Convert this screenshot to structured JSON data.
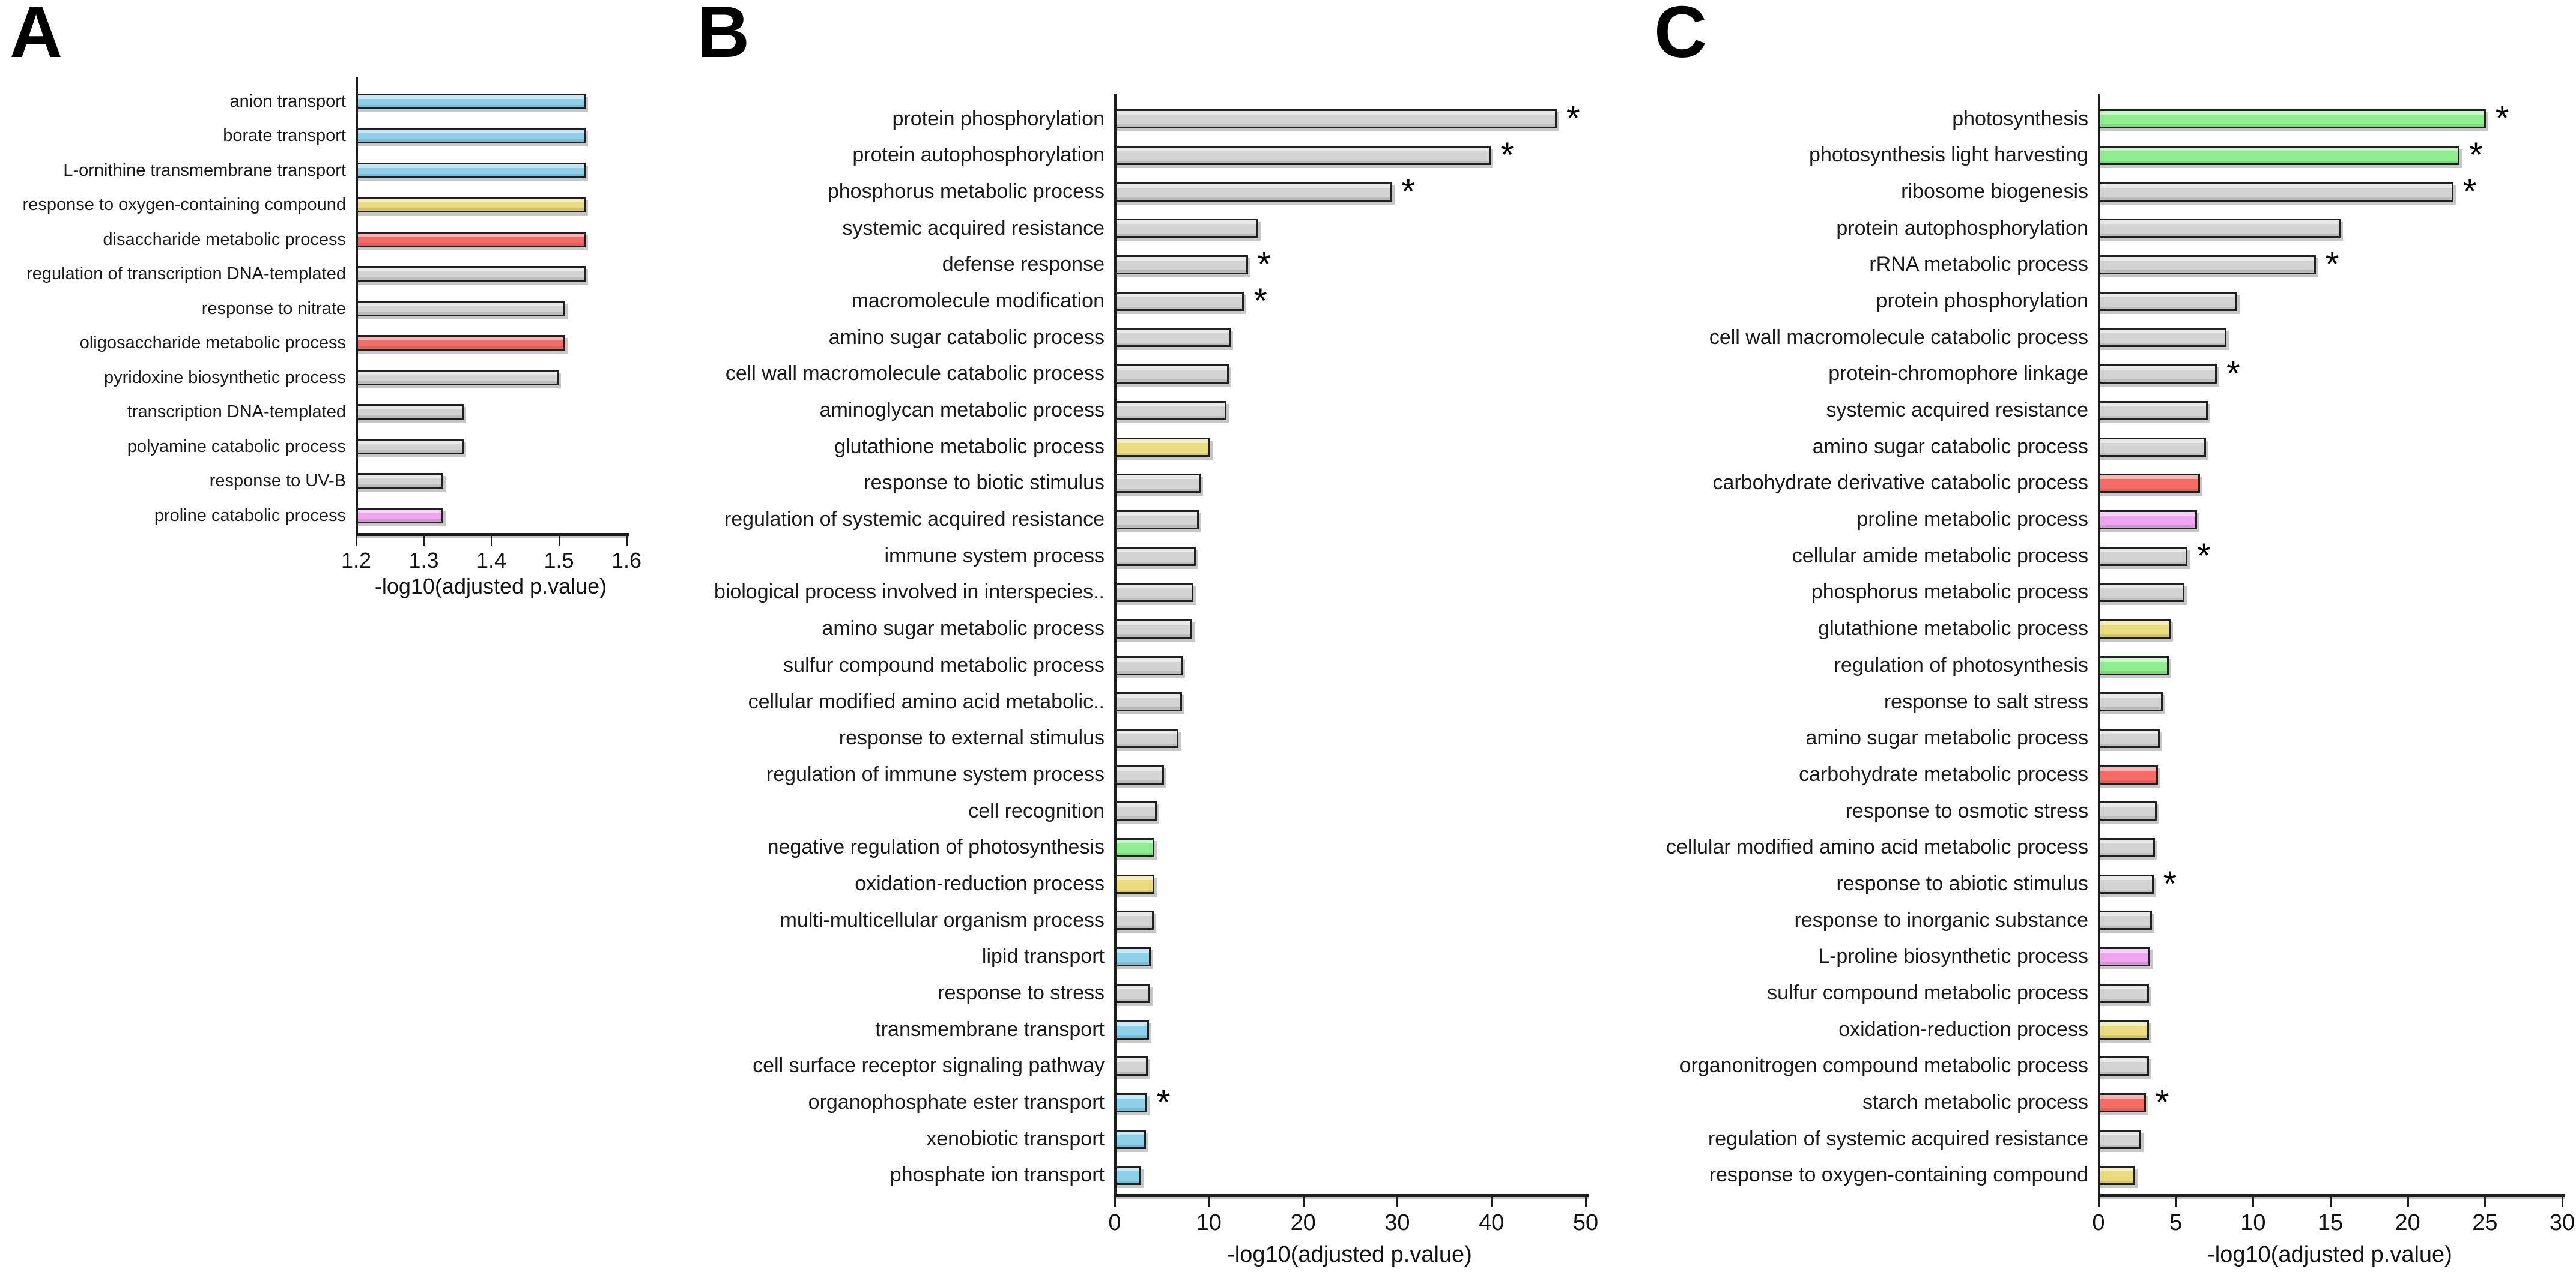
{
  "figure": {
    "background": "#ffffff",
    "star_symbol": "*",
    "description": "GO term enrichment horizontal bar charts, panels A, B, C"
  },
  "palette": {
    "gray": "#d3d3d3",
    "blue": "#8ed0ea",
    "yellow": "#eadc7e",
    "red": "#f56b66",
    "green": "#90ee90",
    "violet": "#efa4f0",
    "outline": "#202020",
    "axis": "#1c1c1c"
  },
  "chart_data": [
    {
      "panel_label": "A",
      "type": "bar",
      "orientation": "horizontal",
      "xlabel": "-log10(adjusted p.value)",
      "xlim": [
        1.2,
        1.6
      ],
      "xticks": [
        "1.2",
        "1.3",
        "1.4",
        "1.5",
        "1.6"
      ],
      "xtick_values": [
        1.2,
        1.3,
        1.4,
        1.5,
        1.6
      ],
      "grid": false,
      "bars": [
        {
          "label": "anion transport",
          "value": 1.54,
          "color": "blue",
          "star": false
        },
        {
          "label": "borate transport",
          "value": 1.54,
          "color": "blue",
          "star": false
        },
        {
          "label": "L-ornithine transmembrane transport",
          "value": 1.54,
          "color": "blue",
          "star": false
        },
        {
          "label": "response to oxygen-containing compound",
          "value": 1.54,
          "color": "yellow",
          "star": false
        },
        {
          "label": "disaccharide metabolic process",
          "value": 1.54,
          "color": "red",
          "star": false
        },
        {
          "label": "regulation of transcription DNA-templated",
          "value": 1.54,
          "color": "gray",
          "star": false
        },
        {
          "label": "response to nitrate",
          "value": 1.51,
          "color": "gray",
          "star": false
        },
        {
          "label": "oligosaccharide metabolic process",
          "value": 1.51,
          "color": "red",
          "star": false
        },
        {
          "label": "pyridoxine biosynthetic process",
          "value": 1.5,
          "color": "gray",
          "star": false
        },
        {
          "label": "transcription DNA-templated",
          "value": 1.36,
          "color": "gray",
          "star": false
        },
        {
          "label": "polyamine catabolic process",
          "value": 1.36,
          "color": "gray",
          "star": false
        },
        {
          "label": "response to UV-B",
          "value": 1.33,
          "color": "gray",
          "star": false
        },
        {
          "label": "proline catabolic process",
          "value": 1.33,
          "color": "violet",
          "star": false
        }
      ]
    },
    {
      "panel_label": "B",
      "type": "bar",
      "orientation": "horizontal",
      "xlabel": "-log10(adjusted p.value)",
      "xlim": [
        0,
        50
      ],
      "xticks": [
        "0",
        "10",
        "20",
        "30",
        "40",
        "50"
      ],
      "xtick_values": [
        0,
        10,
        20,
        30,
        40,
        50
      ],
      "grid": false,
      "bars": [
        {
          "label": "protein phosphorylation",
          "value": 47.0,
          "color": "gray",
          "star": true
        },
        {
          "label": "protein autophosphorylation",
          "value": 40.0,
          "color": "gray",
          "star": true
        },
        {
          "label": "phosphorus metabolic process",
          "value": 29.5,
          "color": "gray",
          "star": true
        },
        {
          "label": "systemic acquired resistance",
          "value": 15.3,
          "color": "gray",
          "star": false
        },
        {
          "label": "defense response",
          "value": 14.2,
          "color": "gray",
          "star": true
        },
        {
          "label": "macromolecule modification",
          "value": 13.8,
          "color": "gray",
          "star": true
        },
        {
          "label": "amino sugar catabolic process",
          "value": 12.4,
          "color": "gray",
          "star": false
        },
        {
          "label": "cell wall macromolecule catabolic process",
          "value": 12.2,
          "color": "gray",
          "star": false
        },
        {
          "label": "aminoglycan metabolic process",
          "value": 11.9,
          "color": "gray",
          "star": false
        },
        {
          "label": "glutathione metabolic process",
          "value": 10.2,
          "color": "yellow",
          "star": false
        },
        {
          "label": "response to biotic stimulus",
          "value": 9.2,
          "color": "gray",
          "star": false
        },
        {
          "label": "regulation of systemic acquired resistance",
          "value": 9.0,
          "color": "gray",
          "star": false
        },
        {
          "label": "immune system process",
          "value": 8.7,
          "color": "gray",
          "star": false
        },
        {
          "label": "biological process involved in interspecies..",
          "value": 8.4,
          "color": "gray",
          "star": false
        },
        {
          "label": "amino sugar metabolic process",
          "value": 8.3,
          "color": "gray",
          "star": false
        },
        {
          "label": "sulfur compound metabolic process",
          "value": 7.3,
          "color": "gray",
          "star": false
        },
        {
          "label": "cellular modified amino acid metabolic..",
          "value": 7.2,
          "color": "gray",
          "star": false
        },
        {
          "label": "response to external stimulus",
          "value": 6.8,
          "color": "gray",
          "star": false
        },
        {
          "label": "regulation of immune system process",
          "value": 5.3,
          "color": "gray",
          "star": false
        },
        {
          "label": "cell recognition",
          "value": 4.5,
          "color": "gray",
          "star": false
        },
        {
          "label": "negative regulation of photosynthesis",
          "value": 4.3,
          "color": "green",
          "star": false
        },
        {
          "label": "oxidation-reduction process",
          "value": 4.3,
          "color": "yellow",
          "star": false
        },
        {
          "label": "multi-multicellular organism process",
          "value": 4.2,
          "color": "gray",
          "star": false
        },
        {
          "label": "lipid transport",
          "value": 3.9,
          "color": "blue",
          "star": false
        },
        {
          "label": "response to stress",
          "value": 3.8,
          "color": "gray",
          "star": false
        },
        {
          "label": "transmembrane transport",
          "value": 3.7,
          "color": "blue",
          "star": false
        },
        {
          "label": "cell surface receptor signaling pathway",
          "value": 3.6,
          "color": "gray",
          "star": false
        },
        {
          "label": "organophosphate ester transport",
          "value": 3.5,
          "color": "blue",
          "star": true
        },
        {
          "label": "xenobiotic transport",
          "value": 3.4,
          "color": "blue",
          "star": false
        },
        {
          "label": "phosphate ion transport",
          "value": 2.9,
          "color": "blue",
          "star": false
        }
      ]
    },
    {
      "panel_label": "C",
      "type": "bar",
      "orientation": "horizontal",
      "xlabel": "-log10(adjusted p.value)",
      "xlim": [
        0,
        30
      ],
      "xticks": [
        "0",
        "5",
        "10",
        "15",
        "20",
        "25",
        "30"
      ],
      "xtick_values": [
        0,
        5,
        10,
        15,
        20,
        25,
        30
      ],
      "grid": false,
      "bars": [
        {
          "label": "photosynthesis",
          "value": 25.1,
          "color": "green",
          "star": true
        },
        {
          "label": "photosynthesis light harvesting",
          "value": 23.4,
          "color": "green",
          "star": true
        },
        {
          "label": "ribosome biogenesis",
          "value": 23.0,
          "color": "gray",
          "star": true
        },
        {
          "label": "protein autophosphorylation",
          "value": 15.7,
          "color": "gray",
          "star": false
        },
        {
          "label": "rRNA metabolic process",
          "value": 14.1,
          "color": "gray",
          "star": true
        },
        {
          "label": "protein phosphorylation",
          "value": 9.0,
          "color": "gray",
          "star": false
        },
        {
          "label": "cell wall macromolecule catabolic process",
          "value": 8.3,
          "color": "gray",
          "star": false
        },
        {
          "label": "protein-chromophore linkage",
          "value": 7.7,
          "color": "gray",
          "star": true
        },
        {
          "label": "systemic acquired resistance",
          "value": 7.1,
          "color": "gray",
          "star": false
        },
        {
          "label": "amino sugar catabolic process",
          "value": 7.0,
          "color": "gray",
          "star": false
        },
        {
          "label": "carbohydrate derivative catabolic process",
          "value": 6.6,
          "color": "red",
          "star": false
        },
        {
          "label": "proline metabolic process",
          "value": 6.4,
          "color": "violet",
          "star": false
        },
        {
          "label": "cellular amide metabolic process",
          "value": 5.8,
          "color": "gray",
          "star": true
        },
        {
          "label": "phosphorus metabolic process",
          "value": 5.6,
          "color": "gray",
          "star": false
        },
        {
          "label": "glutathione metabolic process",
          "value": 4.7,
          "color": "yellow",
          "star": false
        },
        {
          "label": "regulation of photosynthesis",
          "value": 4.6,
          "color": "green",
          "star": false
        },
        {
          "label": "response to salt stress",
          "value": 4.2,
          "color": "gray",
          "star": false
        },
        {
          "label": "amino sugar metabolic process",
          "value": 4.0,
          "color": "gray",
          "star": false
        },
        {
          "label": "carbohydrate metabolic process",
          "value": 3.9,
          "color": "red",
          "star": false
        },
        {
          "label": "response to osmotic stress",
          "value": 3.8,
          "color": "gray",
          "star": false
        },
        {
          "label": "cellular modified amino acid metabolic process",
          "value": 3.7,
          "color": "gray",
          "star": false
        },
        {
          "label": "response to abiotic stimulus",
          "value": 3.6,
          "color": "gray",
          "star": true
        },
        {
          "label": "response to inorganic substance",
          "value": 3.5,
          "color": "gray",
          "star": false
        },
        {
          "label": "L-proline biosynthetic process",
          "value": 3.4,
          "color": "violet",
          "star": false
        },
        {
          "label": "sulfur compound metabolic process",
          "value": 3.3,
          "color": "gray",
          "star": false
        },
        {
          "label": "oxidation-reduction process",
          "value": 3.3,
          "color": "yellow",
          "star": false
        },
        {
          "label": "organonitrogen compound metabolic process",
          "value": 3.3,
          "color": "gray",
          "star": false
        },
        {
          "label": "starch metabolic process",
          "value": 3.1,
          "color": "red",
          "star": true
        },
        {
          "label": "regulation of systemic acquired resistance",
          "value": 2.8,
          "color": "gray",
          "star": false
        },
        {
          "label": "response to oxygen-containing compound",
          "value": 2.4,
          "color": "yellow",
          "star": false
        }
      ]
    }
  ]
}
